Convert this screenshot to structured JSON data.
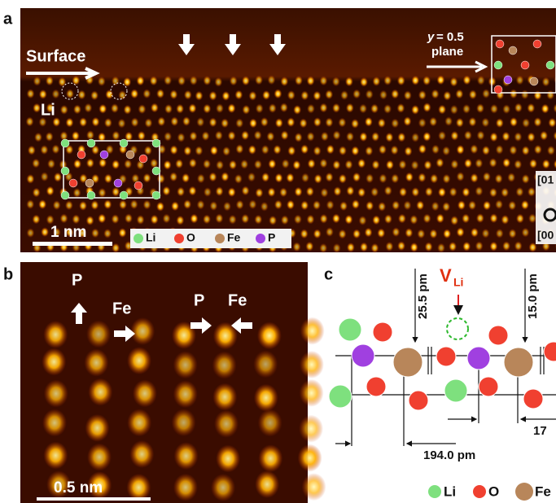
{
  "panel_a": {
    "label": "a",
    "surface": "Surface",
    "li": "Li",
    "plane_y": "y",
    "plane_eq": "= 0.5",
    "plane_word": "plane",
    "scale_bar": "1 nm",
    "legend": [
      "Li",
      "O",
      "Fe",
      "P"
    ],
    "axis_labels": [
      "[01",
      "[00"
    ]
  },
  "panel_b": {
    "label": "b",
    "annotations": [
      "P",
      "Fe",
      "P",
      "Fe"
    ],
    "scale_bar": "0.5 nm"
  },
  "panel_c": {
    "label": "c",
    "vacancy_symbol": "V",
    "vacancy_subscript": "Li",
    "distances": [
      "25.5 pm",
      "15.0 pm",
      "194.0 pm",
      "17"
    ],
    "legend": [
      "Li",
      "O",
      "Fe"
    ]
  }
}
